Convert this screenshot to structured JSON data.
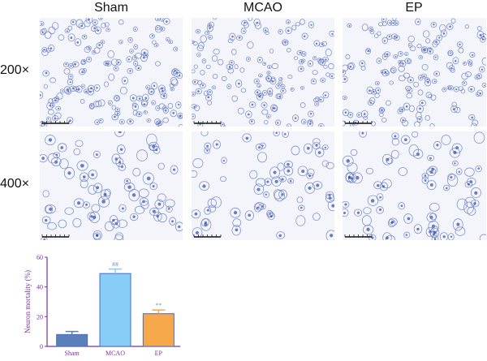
{
  "figure": {
    "columns": [
      "Sham",
      "MCAO",
      "EP"
    ],
    "rows": [
      {
        "label": "200×",
        "key": "200"
      },
      {
        "label": "400×",
        "key": "400"
      }
    ],
    "panels": [
      {
        "row": "200",
        "col": "Sham",
        "density": 170,
        "cell_size": 3.2
      },
      {
        "row": "200",
        "col": "MCAO",
        "density": 150,
        "cell_size": 3.0
      },
      {
        "row": "200",
        "col": "EP",
        "density": 160,
        "cell_size": 3.1
      },
      {
        "row": "400",
        "col": "Sham",
        "density": 75,
        "cell_size": 5.2
      },
      {
        "row": "400",
        "col": "MCAO",
        "density": 70,
        "cell_size": 4.8
      },
      {
        "row": "400",
        "col": "EP",
        "density": 80,
        "cell_size": 5.0
      }
    ],
    "stain_colors": {
      "cell": "#6f83c8",
      "nucleus": "#2f4aa8",
      "background": "#f4f5fa"
    }
  },
  "chart_data": {
    "type": "bar",
    "categories": [
      "Sham",
      "MCAO",
      "EP"
    ],
    "values": [
      8,
      49,
      22
    ],
    "errors": [
      2,
      3,
      2.5
    ],
    "annotations": [
      "",
      "##",
      "**"
    ],
    "ylabel": "Neuron mortality (%)",
    "ylim": [
      0,
      60
    ],
    "yticks": [
      0,
      20,
      40,
      60
    ],
    "colors": [
      "#5b7fb8",
      "#87cdf7",
      "#f7a84a"
    ],
    "annotation_colors": [
      "",
      "#6f8fd8",
      "#8a96c8"
    ],
    "axis_color": "#7a2fa0"
  }
}
